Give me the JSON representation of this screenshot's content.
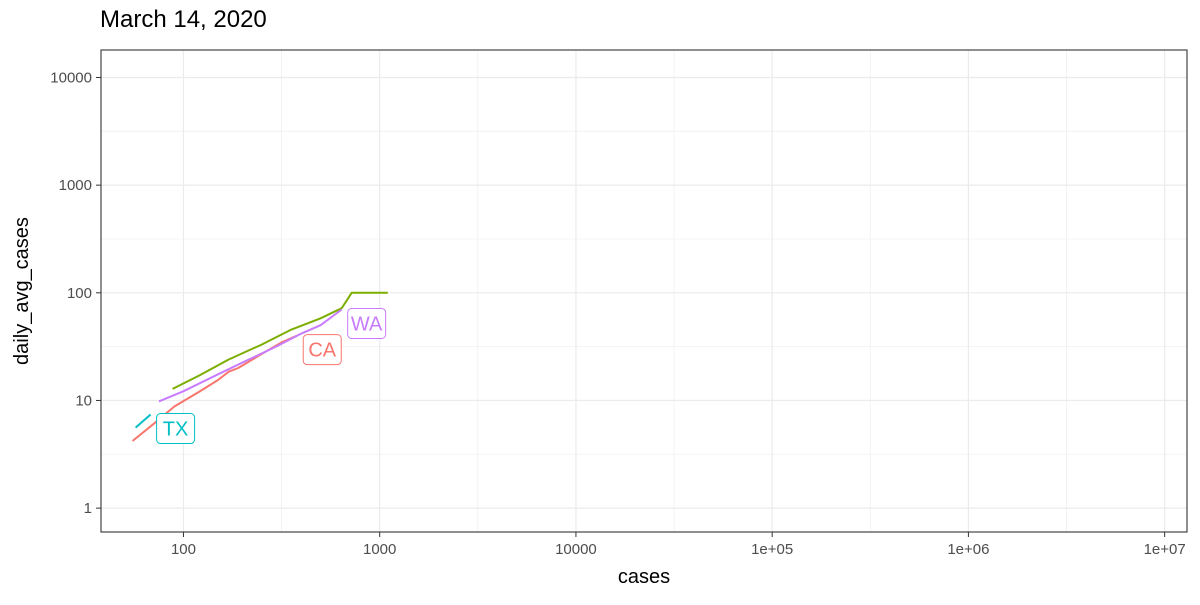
{
  "chart_data": {
    "type": "line",
    "title": "March 14, 2020",
    "xlabel": "cases",
    "ylabel": "daily_avg_cases",
    "x_scale": "log10",
    "y_scale": "log10",
    "xlim": [
      38,
      13000000
    ],
    "ylim": [
      0.6,
      18000
    ],
    "x_ticks": [
      {
        "value": 100,
        "label": "100"
      },
      {
        "value": 1000,
        "label": "1000"
      },
      {
        "value": 10000,
        "label": "10000"
      },
      {
        "value": 100000,
        "label": "1e+05"
      },
      {
        "value": 1000000,
        "label": "1e+06"
      },
      {
        "value": 10000000,
        "label": "1e+07"
      }
    ],
    "y_ticks": [
      {
        "value": 1,
        "label": "1"
      },
      {
        "value": 10,
        "label": "10"
      },
      {
        "value": 100,
        "label": "100"
      },
      {
        "value": 1000,
        "label": "1000"
      },
      {
        "value": 10000,
        "label": "10000"
      }
    ],
    "grid": true,
    "series": [
      {
        "name": "CA",
        "color": "#F8766D",
        "label_style": "box",
        "points": [
          [
            55,
            4.2
          ],
          [
            70,
            6.0
          ],
          [
            90,
            8.8
          ],
          [
            120,
            12
          ],
          [
            150,
            15.5
          ],
          [
            170,
            18.5
          ],
          [
            190,
            20
          ],
          [
            250,
            27
          ],
          [
            320,
            35
          ],
          [
            380,
            40
          ]
        ]
      },
      {
        "name": "",
        "color": "#7CAE00",
        "label_style": "none",
        "points": [
          [
            88,
            12.8
          ],
          [
            120,
            17
          ],
          [
            170,
            24
          ],
          [
            250,
            33
          ],
          [
            350,
            45
          ],
          [
            500,
            58
          ],
          [
            640,
            72
          ],
          [
            720,
            100
          ],
          [
            1100,
            100
          ]
        ]
      },
      {
        "name": "TX",
        "color": "#00BFC4",
        "label_style": "box",
        "points": [
          [
            57,
            5.6
          ],
          [
            68,
            7.4
          ]
        ]
      },
      {
        "name": "WA",
        "color": "#C77CFF",
        "label_style": "box",
        "points": [
          [
            75,
            9.8
          ],
          [
            100,
            12.2
          ],
          [
            150,
            17.5
          ],
          [
            200,
            22.5
          ],
          [
            300,
            32
          ],
          [
            400,
            42
          ],
          [
            500,
            50
          ],
          [
            640,
            70
          ]
        ]
      }
    ]
  }
}
